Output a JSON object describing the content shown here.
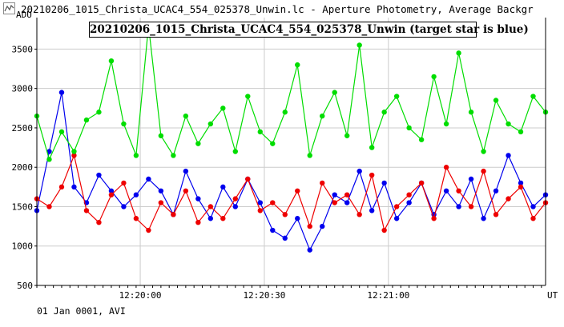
{
  "window": {
    "title": "20210206_1015_Christa_UCAC4_554_025378_Unwin.lc - Aperture Photometry, Average Backgr",
    "icon": "light-curve-icon"
  },
  "status": {
    "text": "01 Jan 0001, AVI"
  },
  "colors": {
    "target": "#0000ee",
    "comparison": "#ee0000",
    "check": "#00dd00",
    "grid": "#cccccc"
  },
  "chart_data": {
    "type": "line",
    "title": "20210206_1015_Christa_UCAC4_554_025378_Unwin (target star is blue)",
    "ylabel": "ADU",
    "xlabel": "UT",
    "ylim": [
      500,
      3900
    ],
    "yticks": [
      500,
      1000,
      1500,
      2000,
      2500,
      3000,
      3500
    ],
    "xlim": [
      "12:19:35",
      "12:21:38"
    ],
    "xticks": [
      "12:20:00",
      "12:20:30",
      "12:21:00"
    ],
    "grid": true,
    "series": [
      {
        "color": "#0000ee",
        "x": [
          "12:19:35",
          "12:19:38",
          "12:19:41",
          "12:19:44",
          "12:19:47",
          "12:19:50",
          "12:19:53",
          "12:19:56",
          "12:19:59",
          "12:20:02",
          "12:20:05",
          "12:20:08",
          "12:20:11",
          "12:20:14",
          "12:20:17",
          "12:20:20",
          "12:20:23",
          "12:20:26",
          "12:20:29",
          "12:20:32",
          "12:20:35",
          "12:20:38",
          "12:20:41",
          "12:20:44",
          "12:20:47",
          "12:20:50",
          "12:20:53",
          "12:20:56",
          "12:20:59",
          "12:21:02",
          "12:21:05",
          "12:21:08",
          "12:21:11",
          "12:21:14",
          "12:21:17",
          "12:21:20",
          "12:21:23",
          "12:21:26",
          "12:21:29",
          "12:21:32",
          "12:21:35",
          "12:21:38"
        ],
        "values": [
          1450,
          2200,
          2950,
          1750,
          1550,
          1900,
          1700,
          1500,
          1650,
          1850,
          1700,
          1400,
          1950,
          1600,
          1350,
          1750,
          1500,
          1850,
          1550,
          1200,
          1100,
          1350,
          950,
          1250,
          1650,
          1550,
          1950,
          1450,
          1800,
          1350,
          1550,
          1800,
          1400,
          1700,
          1500,
          1850,
          1350,
          1700,
          2150,
          1800,
          1500,
          1650
        ]
      },
      {
        "color": "#ee0000",
        "x": [
          "12:19:35",
          "12:19:38",
          "12:19:41",
          "12:19:44",
          "12:19:47",
          "12:19:50",
          "12:19:53",
          "12:19:56",
          "12:19:59",
          "12:20:02",
          "12:20:05",
          "12:20:08",
          "12:20:11",
          "12:20:14",
          "12:20:17",
          "12:20:20",
          "12:20:23",
          "12:20:26",
          "12:20:29",
          "12:20:32",
          "12:20:35",
          "12:20:38",
          "12:20:41",
          "12:20:44",
          "12:20:47",
          "12:20:50",
          "12:20:53",
          "12:20:56",
          "12:20:59",
          "12:21:02",
          "12:21:05",
          "12:21:08",
          "12:21:11",
          "12:21:14",
          "12:21:17",
          "12:21:20",
          "12:21:23",
          "12:21:26",
          "12:21:29",
          "12:21:32",
          "12:21:35",
          "12:21:38"
        ],
        "values": [
          1600,
          1500,
          1750,
          2150,
          1450,
          1300,
          1650,
          1800,
          1350,
          1200,
          1550,
          1400,
          1700,
          1300,
          1500,
          1350,
          1600,
          1850,
          1450,
          1550,
          1400,
          1700,
          1250,
          1800,
          1550,
          1650,
          1400,
          1900,
          1200,
          1500,
          1650,
          1800,
          1350,
          2000,
          1700,
          1500,
          1950,
          1400,
          1600,
          1750,
          1350,
          1550
        ]
      },
      {
        "color": "#00dd00",
        "x": [
          "12:19:35",
          "12:19:38",
          "12:19:41",
          "12:19:44",
          "12:19:47",
          "12:19:50",
          "12:19:53",
          "12:19:56",
          "12:19:59",
          "12:20:02",
          "12:20:05",
          "12:20:08",
          "12:20:11",
          "12:20:14",
          "12:20:17",
          "12:20:20",
          "12:20:23",
          "12:20:26",
          "12:20:29",
          "12:20:32",
          "12:20:35",
          "12:20:38",
          "12:20:41",
          "12:20:44",
          "12:20:47",
          "12:20:50",
          "12:20:53",
          "12:20:56",
          "12:20:59",
          "12:21:02",
          "12:21:05",
          "12:21:08",
          "12:21:11",
          "12:21:14",
          "12:21:17",
          "12:21:20",
          "12:21:23",
          "12:21:26",
          "12:21:29",
          "12:21:32",
          "12:21:35",
          "12:21:38"
        ],
        "values": [
          2650,
          2100,
          2450,
          2200,
          2600,
          2700,
          3350,
          2550,
          2150,
          3800,
          2400,
          2150,
          2650,
          2300,
          2550,
          2750,
          2200,
          2900,
          2450,
          2300,
          2700,
          3300,
          2150,
          2650,
          2950,
          2400,
          3550,
          2250,
          2700,
          2900,
          2500,
          2350,
          3150,
          2550,
          3450,
          2700,
          2200,
          2850,
          2550,
          2450,
          2900,
          2700
        ]
      }
    ]
  }
}
